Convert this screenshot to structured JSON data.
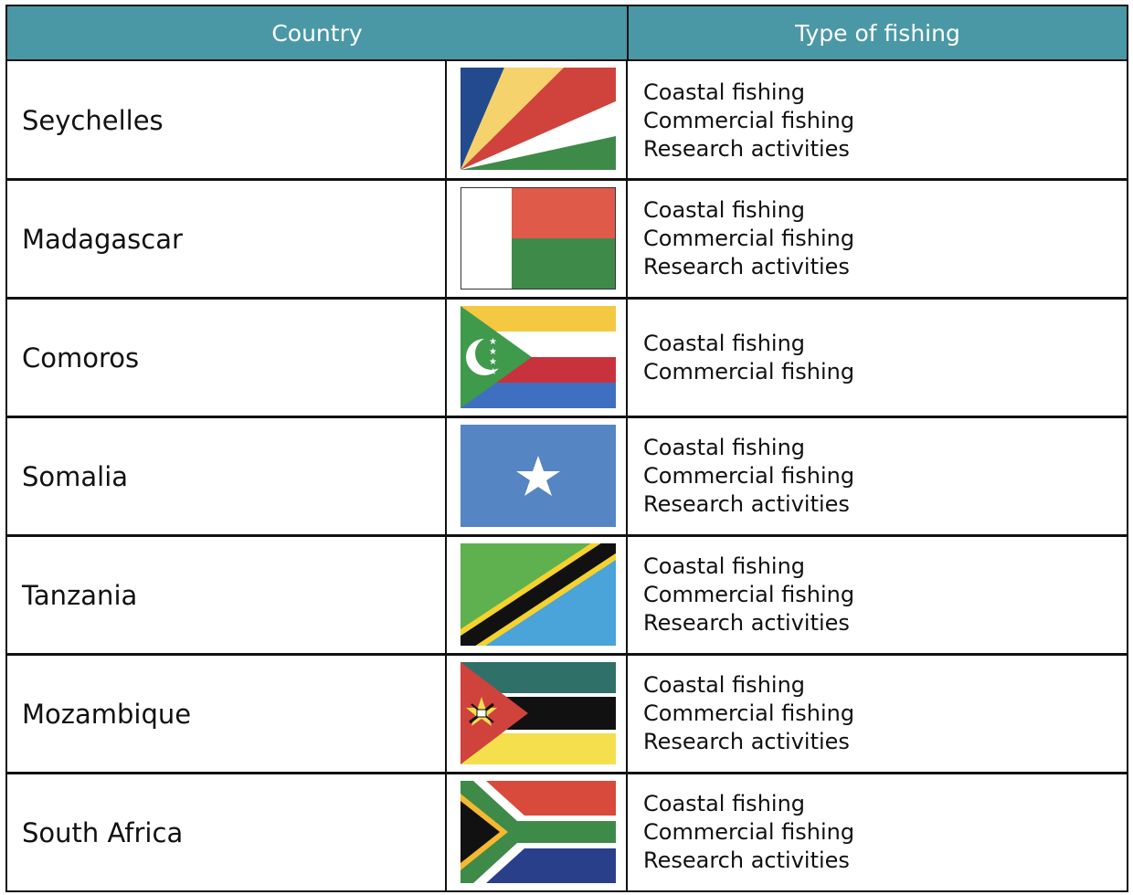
{
  "header": {
    "country": "Country",
    "type_of_fishing": "Type of fishing"
  },
  "rows": [
    {
      "country": "Seychelles",
      "flag": "seychelles-flag",
      "types": [
        "Coastal fishing",
        "Commercial fishing",
        "Research activities"
      ]
    },
    {
      "country": "Madagascar",
      "flag": "madagascar-flag",
      "types": [
        "Coastal fishing",
        "Commercial fishing",
        "Research activities"
      ]
    },
    {
      "country": "Comoros",
      "flag": "comoros-flag",
      "types": [
        "Coastal fishing",
        "Commercial fishing"
      ]
    },
    {
      "country": "Somalia",
      "flag": "somalia-flag",
      "types": [
        "Coastal fishing",
        "Commercial fishing",
        "Research activities"
      ]
    },
    {
      "country": "Tanzania",
      "flag": "tanzania-flag",
      "types": [
        "Coastal fishing",
        "Commercial fishing",
        "Research activities"
      ]
    },
    {
      "country": "Mozambique",
      "flag": "mozambique-flag",
      "types": [
        "Coastal fishing",
        "Commercial fishing",
        "Research activities"
      ]
    },
    {
      "country": "South Africa",
      "flag": "south-africa-flag",
      "types": [
        "Coastal fishing",
        "Commercial fishing",
        "Research activities"
      ]
    }
  ],
  "colors": {
    "header_bg": "#4a98a6",
    "header_text": "#ffffff",
    "border": "#111111"
  }
}
